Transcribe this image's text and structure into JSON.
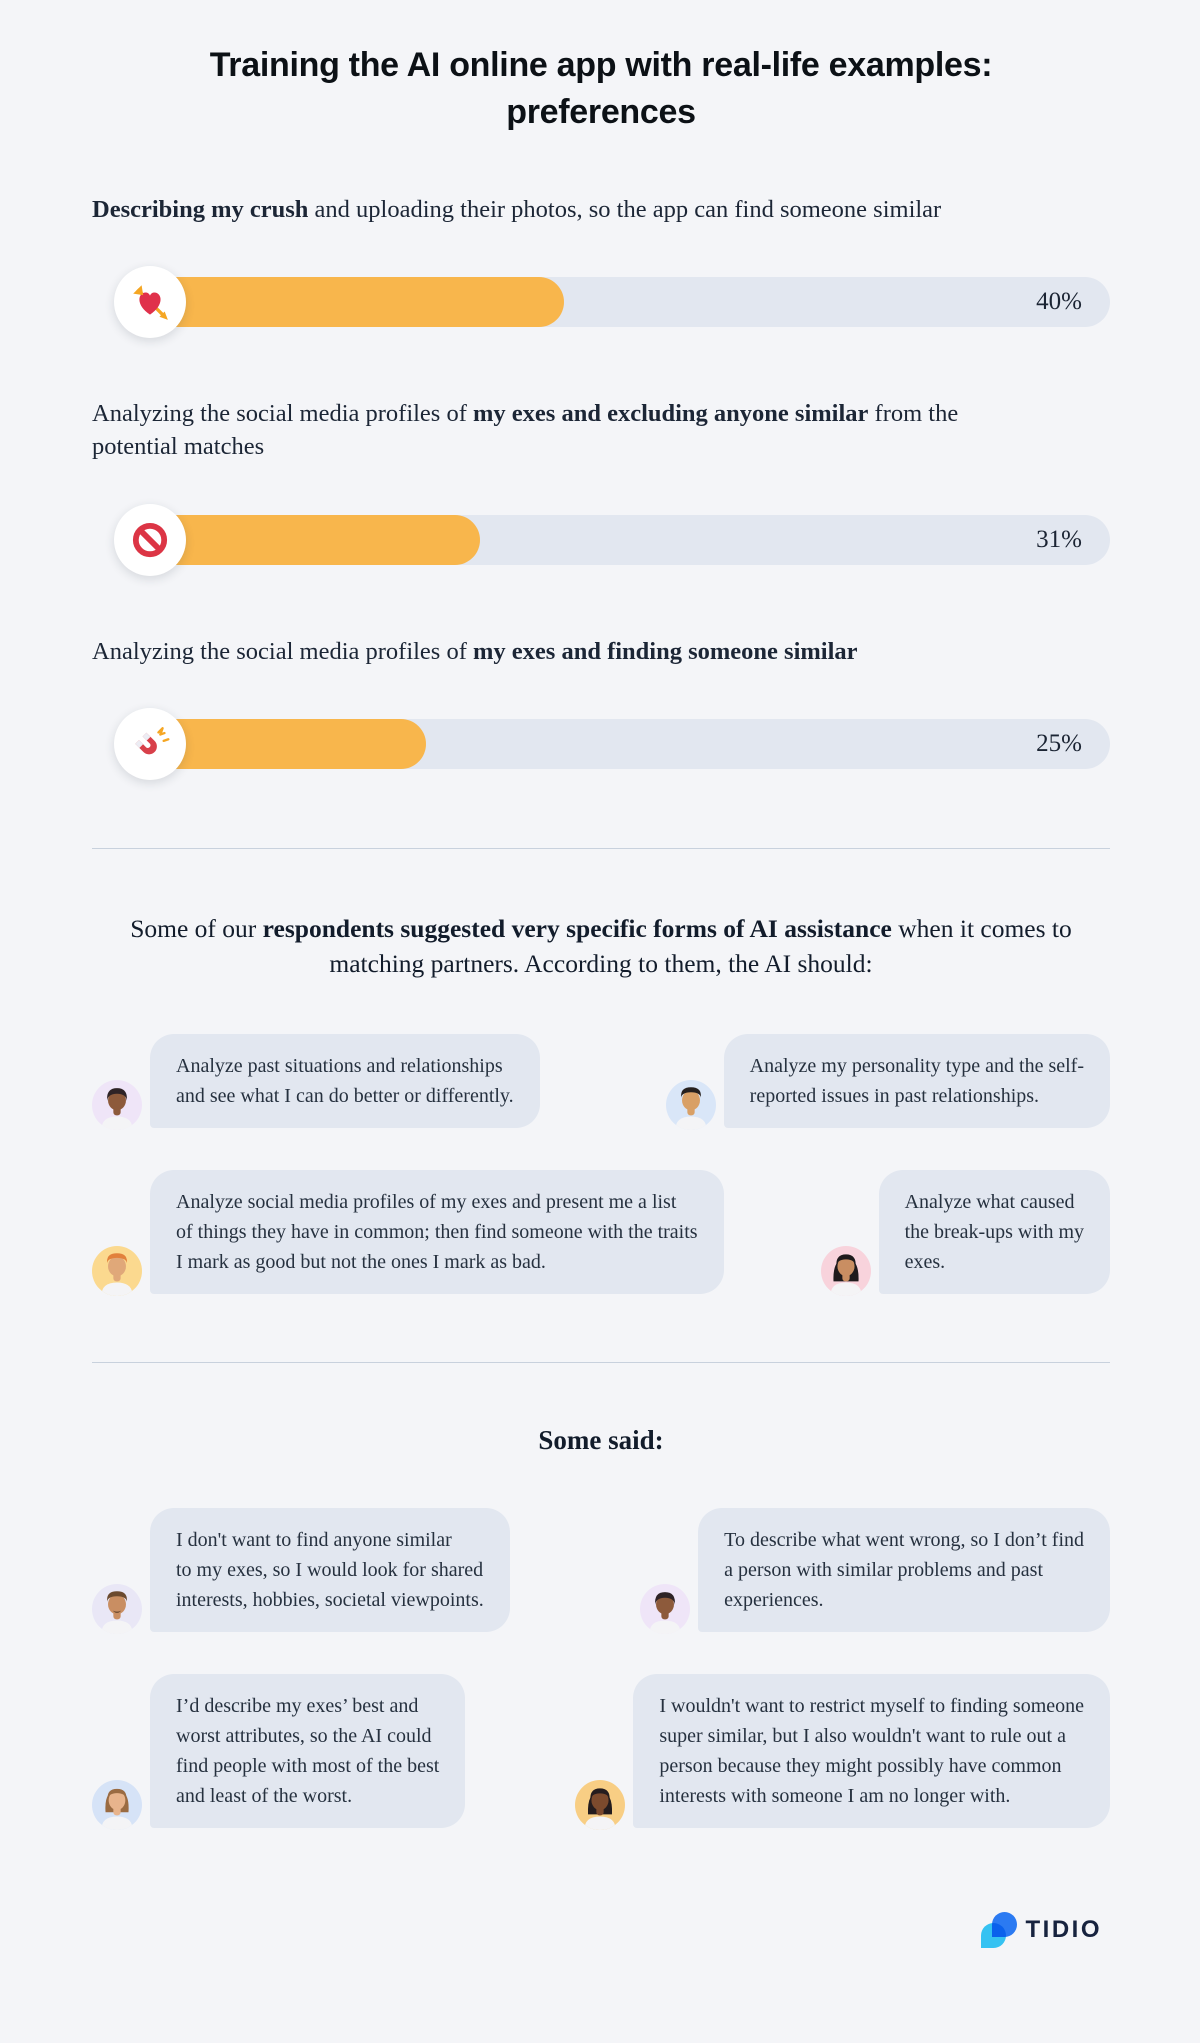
{
  "page": {
    "title": "Training the AI online app with real-life examples: preferences",
    "background_color": "#F4F5F8"
  },
  "colors": {
    "bar_fill": "#F8B64C",
    "bar_track": "#E2E7F0",
    "bubble_background": "#E2E7F0",
    "text_dark": "#1C2636",
    "divider": "#C8D1DD",
    "tidio_navy": "#17233F",
    "tidio_cyan": "#35C2F2",
    "tidio_blue": "#2D7FF9"
  },
  "chart_data": {
    "type": "bar",
    "orientation": "horizontal",
    "title": "Training the AI online app with real-life examples: preferences",
    "categories": [
      "Describing my crush and uploading their photos, so the app can find someone similar",
      "Analyzing the social media profiles of my exes and excluding anyone similar from the potential matches",
      "Analyzing the social media profiles of my exes and finding someone similar"
    ],
    "values": [
      40,
      31,
      25
    ],
    "value_labels": [
      "40%",
      "31%",
      "25%"
    ],
    "unit": "%",
    "xlim": [
      0,
      100
    ],
    "grid": false,
    "icons": [
      "heart-with-arrow",
      "prohibited-sign",
      "magnet"
    ]
  },
  "bars": [
    {
      "label_prefix": "",
      "label_bold": "Describing my crush",
      "label_suffix": " and uploading their photos, so the app can find someone similar",
      "value": 40,
      "value_label": "40%",
      "icon": "heart-with-arrow"
    },
    {
      "label_prefix": "Analyzing the social media profiles of ",
      "label_bold": "my exes and excluding anyone similar",
      "label_suffix": " from the potential matches",
      "value": 31,
      "value_label": "31%",
      "icon": "prohibited-sign"
    },
    {
      "label_prefix": "Analyzing the social media profiles of ",
      "label_bold": "my exes and finding someone",
      "label_bold2": " similar",
      "label_suffix": "",
      "value": 25,
      "value_label": "25%",
      "icon": "magnet"
    }
  ],
  "sections": {
    "suggestions": {
      "intro_prefix": "Some of our ",
      "intro_bold": "respondents suggested very specific forms of AI assistance",
      "intro_suffix": " when it comes to matching partners. According to them, the AI should:",
      "quotes": [
        {
          "text": "Analyze past situations and relationships\nand see what I can do better or differently.",
          "avatar": "woman-dark-skin-purple-background"
        },
        {
          "text": "Analyze my personality type and the self-\nreported issues in past relationships.",
          "avatar": "man-black-hair-blue-background"
        },
        {
          "text": "Analyze social media profiles of my exes and present me a list\nof things they have in common; then find someone with the traits\nI mark as good but not the ones I mark as bad.",
          "avatar": "man-orange-hair-yellow-background"
        },
        {
          "text": "Analyze what caused\nthe break-ups with my\nexes.",
          "avatar": "woman-black-hair-pink-background"
        }
      ]
    },
    "some_said": {
      "heading": "Some said:",
      "quotes": [
        {
          "text": "I don't want to find anyone similar\nto my exes, so I would look for shared\ninterests, hobbies, societal viewpoints.",
          "avatar": "man-mustache-lavender-background"
        },
        {
          "text": "To describe what went wrong, so I don’t find\na person with similar problems and past\nexperiences.",
          "avatar": "woman-dark-skin-purple-background"
        },
        {
          "text": "I’d describe my exes’ best and\nworst attributes, so the AI could\nfind people with most of the best\nand least of the worst.",
          "avatar": "woman-brown-hair-blue-background"
        },
        {
          "text": "I wouldn't want to restrict myself to finding someone\nsuper similar, but I also wouldn't want to rule out a\nperson because they might possibly have common\ninterests with someone I am no longer with.",
          "avatar": "woman-dark-skin-yellow-background"
        }
      ]
    }
  },
  "footer": {
    "brand": "TIDIO"
  }
}
